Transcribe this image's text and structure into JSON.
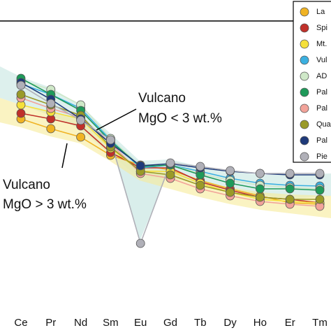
{
  "chart_data": {
    "type": "line",
    "categories": [
      "Ce",
      "Pr",
      "Nd",
      "Sm",
      "Eu",
      "Gd",
      "Tb",
      "Dy",
      "Ho",
      "Er",
      "Tm"
    ],
    "ylim": [
      0,
      410
    ],
    "annotations": [
      [
        "Vulcano",
        "MgO < 3 wt.%"
      ],
      [
        "Vulcano",
        "MgO > 3 wt.%"
      ]
    ],
    "series": [
      {
        "name": "La",
        "color": "#f0b323",
        "values": [
          270,
          256,
          244,
          218,
          204,
          197,
          182,
          170,
          160,
          150,
          148
        ]
      },
      {
        "name": "Spi",
        "color": "#c0302a",
        "values": [
          278,
          270,
          260,
          222,
          200,
          200,
          180,
          168,
          158,
          155,
          150
        ]
      },
      {
        "name": "Mt.",
        "color": "#f5e03a",
        "values": [
          290,
          280,
          270,
          228,
          195,
          195,
          178,
          165,
          155,
          152,
          150
        ]
      },
      {
        "name": "Vul",
        "color": "#3bb0e0",
        "values": [
          320,
          305,
          285,
          240,
          200,
          204,
          195,
          185,
          178,
          175,
          174
        ]
      },
      {
        "name": "AD",
        "color": "#cfe8c8",
        "values": [
          325,
          312,
          290,
          242,
          202,
          204,
          192,
          182,
          175,
          172,
          170
        ]
      },
      {
        "name": "Pal",
        "color": "#1f9a5a",
        "values": [
          328,
          305,
          282,
          238,
          202,
          204,
          190,
          178,
          170,
          170,
          168
        ]
      },
      {
        "name": "Pal",
        "color": "#f2a39a",
        "values": [
          300,
          285,
          272,
          235,
          192,
          185,
          170,
          160,
          152,
          148,
          145
        ]
      },
      {
        "name": "Qua",
        "color": "#9a9a28",
        "values": [
          305,
          290,
          275,
          230,
          195,
          190,
          175,
          165,
          158,
          155,
          155
        ]
      },
      {
        "name": "Pal",
        "color": "#1f3a7a",
        "values": [
          322,
          298,
          270,
          235,
          203,
          206,
          200,
          195,
          192,
          190,
          190
        ]
      },
      {
        "name": "Pie",
        "color": "#b0b0b8",
        "values": [
          318,
          292,
          268,
          240,
          92,
          207,
          202,
          196,
          192,
          192,
          192
        ]
      }
    ]
  }
}
